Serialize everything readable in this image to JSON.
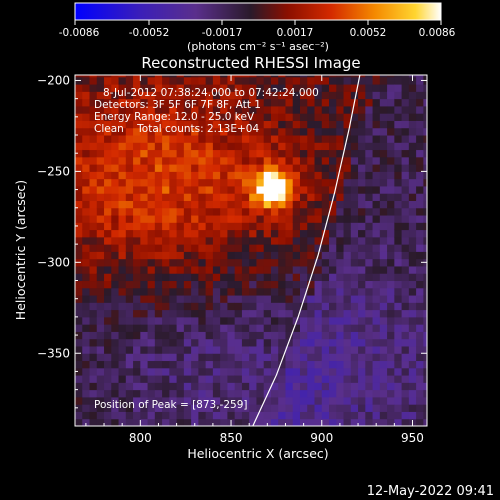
{
  "chart_data": {
    "type": "heatmap",
    "title": "Reconstructed RHESSI Image",
    "xlabel": "Heliocentric X (arcsec)",
    "ylabel": "Heliocentric Y (arcsec)",
    "xlim": [
      764,
      958
    ],
    "ylim": [
      -390,
      -197
    ],
    "xticks": [
      800,
      850,
      900,
      950
    ],
    "yticks": [
      -200,
      -250,
      -300,
      -350
    ],
    "grid": false,
    "colorbar": {
      "position": "top",
      "label": "(photons cm⁻² s⁻¹ asec⁻²)",
      "range": [
        -0.0086,
        0.0086
      ],
      "ticks": [
        "-0.0086",
        "-0.0052",
        "-0.0017",
        "0.0017",
        "0.0052",
        "0.0086"
      ]
    },
    "info_lines": [
      "8-Jul-2012 07:38:24.000 to 07:42:24.000",
      "Detectors: 3F 5F 6F 7F 8F, Att 1",
      "Energy Range: 12.0 - 25.0 keV",
      "Clean    Total counts: 2.13E+04"
    ],
    "peak": {
      "label": "Position of Peak = [873,-259]",
      "x": 873,
      "y": -259,
      "value": 0.0086
    },
    "limb_curve": [
      [
        862,
        -390
      ],
      [
        875,
        -362
      ],
      [
        887,
        -330
      ],
      [
        898,
        -296
      ],
      [
        907,
        -262
      ],
      [
        915,
        -227
      ],
      [
        921,
        -197
      ]
    ],
    "timestamp": "12-May-2022 09:41"
  },
  "colors": {
    "background": "#000000",
    "colormap": [
      "#0000ff",
      "#3b1fb8",
      "#5a2f8c",
      "#2a1a2a",
      "#8a0f00",
      "#d42a00",
      "#f58a00",
      "#ffd530",
      "#ffffff"
    ],
    "limb": "#ffffff"
  }
}
